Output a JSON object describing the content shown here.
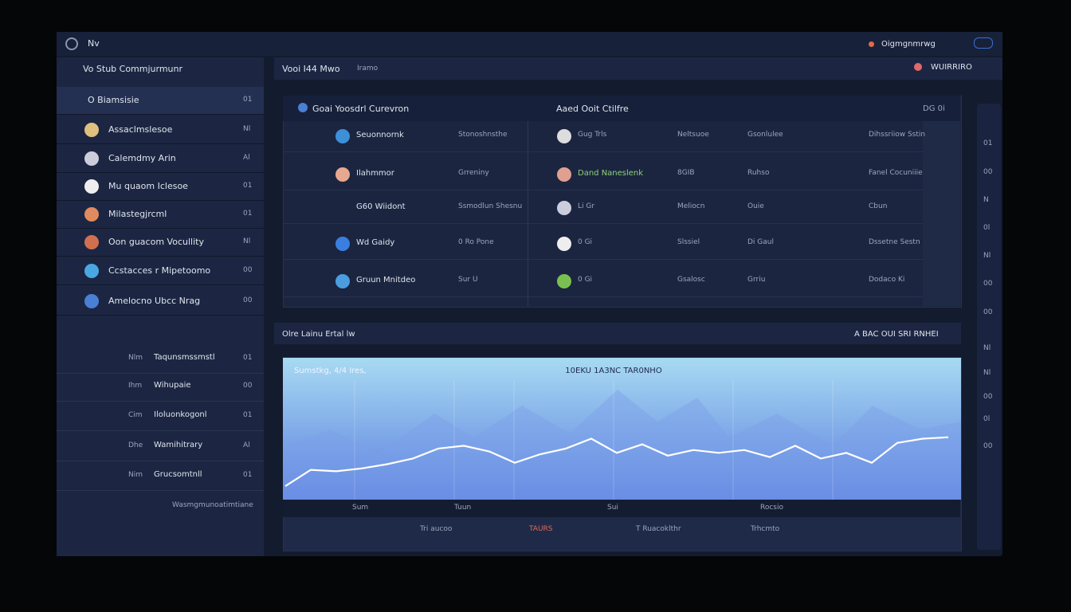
{
  "topbar": {
    "title": "Nv",
    "user": "Oigmgnmrwg"
  },
  "sidebar": {
    "header": "Vo Stub Commjurmunr",
    "items": [
      {
        "label": "O Biamsisie",
        "value": "01"
      },
      {
        "label": "Assaclmslesoe",
        "value": "Nl"
      },
      {
        "label": "Calemdmy Arin",
        "value": "Al"
      },
      {
        "label": "Mu quaom Iclesoe",
        "value": "01"
      },
      {
        "label": "Milastegjrcml",
        "value": "01"
      },
      {
        "label": "Oon guacom Vocullity",
        "value": "Nl"
      },
      {
        "label": "Ccstacces r Mipetoomo",
        "value": "00"
      },
      {
        "label": "Amelocno Ubcc Nrag",
        "value": "00"
      }
    ],
    "section": [
      {
        "tag": "Nlm",
        "label": "Taqunsmssmstl",
        "value": "01"
      },
      {
        "tag": "Ihm",
        "label": "Wihupaie",
        "value": "00"
      },
      {
        "tag": "Cim",
        "label": "Iloluonkogonl",
        "value": "01"
      },
      {
        "tag": "Dhe",
        "label": "Wamihitrary",
        "value": "Al"
      },
      {
        "tag": "Nim",
        "label": "Grucsomtnll",
        "value": "01"
      }
    ],
    "footer": "Wasmgmunoatimtiane"
  },
  "main": {
    "title": "Vooi I44 Mwo",
    "tab": "Iramo",
    "badge": "WUIRRIRO"
  },
  "table": {
    "title": "Goai Yoosdrl Curevron",
    "title2": "Aaed Ooit Ctilfre",
    "corner": "DG 0i",
    "rows": [
      [
        "Seuonnornk",
        "Stonoshnsthe",
        "Gug Trls",
        "Neltsuoe",
        "Gsonlulee",
        "Dihssriiow Sstin"
      ],
      [
        "Ilahmmor",
        "Grreniny",
        "Dand Naneslenk",
        "8GIB",
        "Ruhso",
        "Fanel Cocuniiie"
      ],
      [
        "G60 Wiidont",
        "Ssmodlun Shesnu",
        "Li Gr",
        "Meliocn",
        "Ouie",
        "Cbun"
      ],
      [
        "Wd Gaidy",
        "0 Ro Pone",
        "0 Gi",
        "Slssiel",
        "Di Gaul",
        "Dssetne Sestn"
      ],
      [
        "Gruun Mnitdeo",
        "Sur U",
        "0 Gi",
        "Gsalosc",
        "Grriu",
        "Dodaco Ki"
      ]
    ]
  },
  "chart_section": {
    "title": "Olre Lainu Ertal lw",
    "status": "A BAC OUI SRI RNHEI"
  },
  "chart_data": {
    "type": "line",
    "title": "10EKU 1A3NC TAR0NHO",
    "subtitle": "Sumstkg, 4/4 Ires,",
    "categories": [
      null,
      null,
      null,
      "Sum",
      null,
      null,
      null,
      "Tuun",
      null,
      null,
      null,
      null,
      null,
      "Sui",
      null,
      null,
      null,
      null,
      null,
      "Rocsio",
      null,
      null,
      null,
      null,
      null,
      null,
      null
    ],
    "series": [
      {
        "color": "#ffffff",
        "values": [
          9.5,
          21,
          20,
          22,
          25,
          29,
          36,
          38,
          34,
          26,
          32,
          36,
          43,
          33,
          39,
          31,
          35,
          33,
          35,
          30,
          38,
          29,
          33,
          26,
          40,
          43,
          44
        ]
      }
    ],
    "ylim": [
      0,
      100
    ]
  },
  "chart_footer": [
    "Tri aucoo",
    "TAURS",
    "T Ruacoklthr",
    "Trhcmto"
  ],
  "rail": [
    "01",
    "00",
    "N",
    "0l",
    "Nl",
    "00",
    "00",
    "Nl",
    "Nl",
    "00",
    "0l",
    "00"
  ]
}
